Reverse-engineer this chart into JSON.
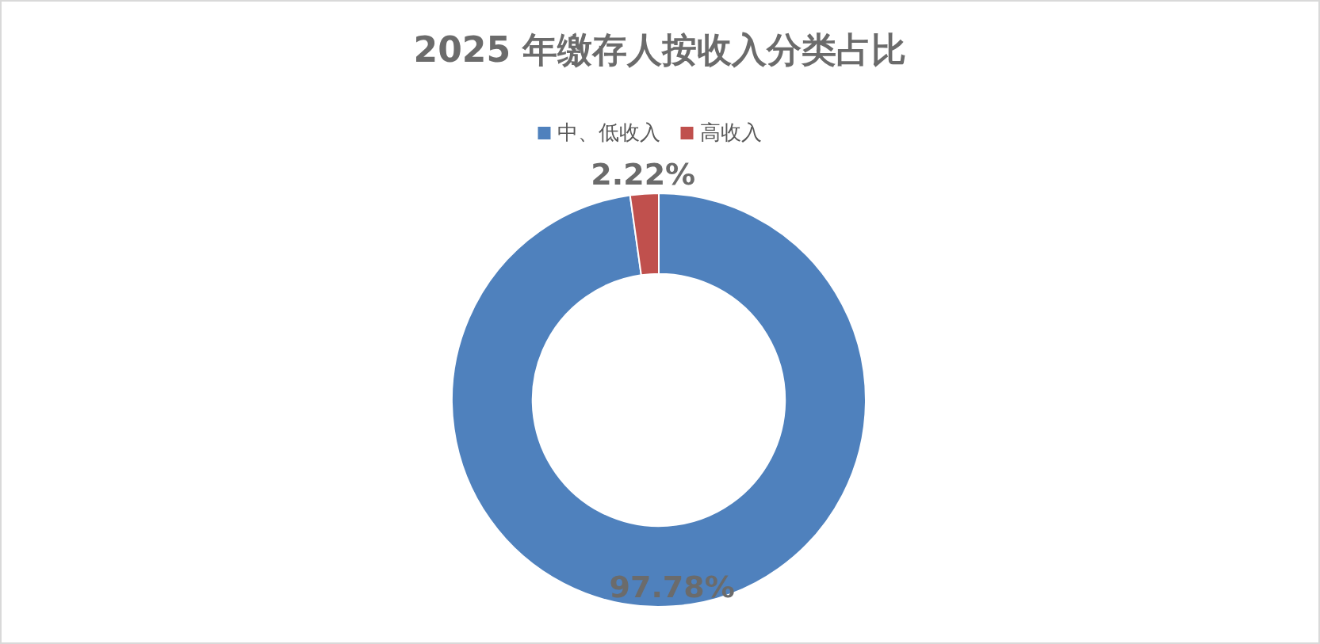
{
  "chart_data": {
    "type": "donut",
    "title": "2025 年缴存人按收入分类占比",
    "categories": [
      "中、低收入",
      "高收入"
    ],
    "values": [
      97.78,
      2.22
    ],
    "colors": [
      "#4f81bd",
      "#c0504d"
    ],
    "value_labels": [
      "97.78%",
      "2.22%"
    ],
    "legend": "top"
  }
}
